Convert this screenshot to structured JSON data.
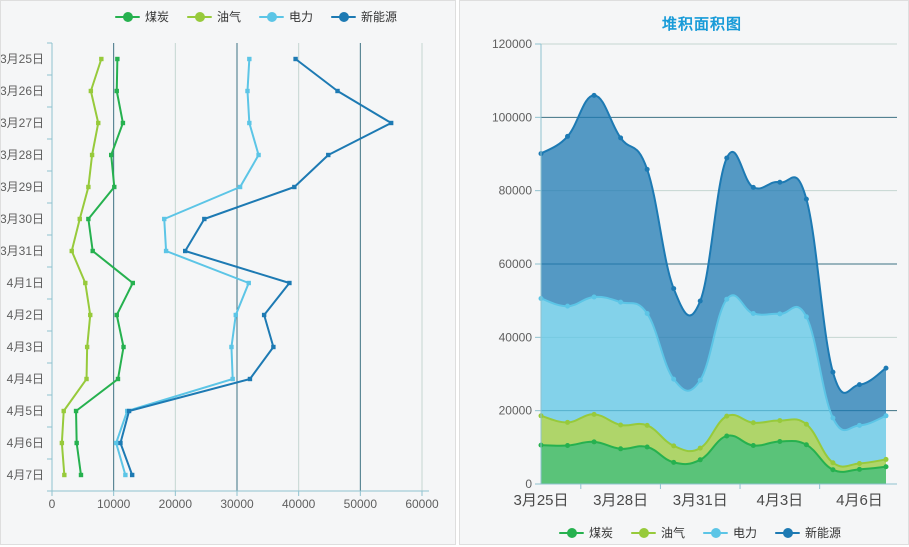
{
  "app": {
    "panel_background": "#f5f6f7",
    "panel_border": "#dedede"
  },
  "legend": {
    "items": [
      {
        "id": "coal",
        "label": "煤炭",
        "color": "#26b14f"
      },
      {
        "id": "oil",
        "label": "油气",
        "color": "#97ca3b"
      },
      {
        "id": "power",
        "label": "电力",
        "color": "#5cc5e6"
      },
      {
        "id": "newenergy",
        "label": "新能源",
        "color": "#1d7ab3"
      }
    ]
  },
  "chart_data": [
    {
      "id": "left-line-chart",
      "type": "line",
      "orientation": "value-on-x",
      "smooth": false,
      "legend_position": "top",
      "grid": "vertical-alternating",
      "grid_colors": {
        "dark": "#3d7183",
        "light": "#c5d6d2"
      },
      "axis_color": "#8fc2cf",
      "label_color": "#5f5f5f",
      "categories": [
        "3月25日",
        "3月26日",
        "3月27日",
        "3月28日",
        "3月29日",
        "3月30日",
        "3月31日",
        "4月1日",
        "4月2日",
        "4月3日",
        "4月4日",
        "4月5日",
        "4月6日",
        "4月7日"
      ],
      "xlim": [
        0,
        60000
      ],
      "xticks": [
        0,
        10000,
        20000,
        30000,
        40000,
        50000,
        60000
      ],
      "series": [
        {
          "id": "coal",
          "name": "煤炭",
          "color": "#26b14f",
          "values": [
            10600,
            10500,
            11500,
            9600,
            10100,
            5900,
            6600,
            13100,
            10500,
            11600,
            10700,
            3900,
            4000,
            4700
          ]
        },
        {
          "id": "oil",
          "name": "油气",
          "color": "#97ca3b",
          "values": [
            8000,
            6300,
            7500,
            6500,
            5900,
            4500,
            3200,
            5400,
            6200,
            5700,
            5600,
            1900,
            1600,
            2000
          ]
        },
        {
          "id": "power",
          "name": "电力",
          "color": "#5cc5e6",
          "values": [
            32000,
            31700,
            32000,
            33500,
            30500,
            18200,
            18500,
            31900,
            29800,
            29100,
            29300,
            12200,
            10400,
            11900
          ]
        },
        {
          "id": "newenergy",
          "name": "新能源",
          "color": "#1d7ab3",
          "values": [
            39500,
            46300,
            55000,
            44800,
            39300,
            24700,
            21600,
            38500,
            34400,
            35900,
            32100,
            12500,
            11100,
            13000
          ]
        }
      ]
    },
    {
      "id": "right-stacked-area-chart",
      "type": "area",
      "stacked": true,
      "smooth": true,
      "title": "堆积面积图",
      "title_color": "#189bd8",
      "legend_position": "bottom",
      "grid": "horizontal-alternating",
      "grid_colors": {
        "dark": "#3d7183",
        "light": "#c5d6d2"
      },
      "axis_color": "#8fc2cf",
      "label_color": "#5f5f5f",
      "x_label_color": "#4a4a4a",
      "area_opacity": 0.75,
      "categories": [
        "3月25日",
        "3月26日",
        "3月27日",
        "3月28日",
        "3月29日",
        "3月30日",
        "3月31日",
        "4月1日",
        "4月2日",
        "4月3日",
        "4月4日",
        "4月5日",
        "4月6日",
        "4月7日"
      ],
      "xtick_labels": [
        "3月25日",
        "3月28日",
        "3月31日",
        "4月3日",
        "4月6日"
      ],
      "xtick_label_interval": 3,
      "ylim": [
        0,
        120000
      ],
      "yticks": [
        0,
        20000,
        40000,
        60000,
        80000,
        100000,
        120000
      ],
      "series": [
        {
          "id": "coal",
          "name": "煤炭",
          "color": "#26b14f",
          "values": [
            10600,
            10500,
            11500,
            9600,
            10100,
            5900,
            6600,
            13100,
            10500,
            11600,
            10700,
            3900,
            4000,
            4700
          ]
        },
        {
          "id": "oil",
          "name": "油气",
          "color": "#97ca3b",
          "values": [
            8000,
            6300,
            7500,
            6500,
            5900,
            4500,
            3200,
            5400,
            6200,
            5700,
            5600,
            1900,
            1600,
            2000
          ]
        },
        {
          "id": "power",
          "name": "电力",
          "color": "#5cc5e6",
          "values": [
            32000,
            31700,
            32000,
            33500,
            30500,
            18200,
            18500,
            31900,
            29800,
            29100,
            29300,
            12200,
            10400,
            11900
          ]
        },
        {
          "id": "newenergy",
          "name": "新能源",
          "color": "#1d7ab3",
          "values": [
            39500,
            46300,
            55000,
            44800,
            39300,
            24700,
            21600,
            38500,
            34400,
            35900,
            32100,
            12500,
            11100,
            13000
          ]
        }
      ]
    }
  ]
}
